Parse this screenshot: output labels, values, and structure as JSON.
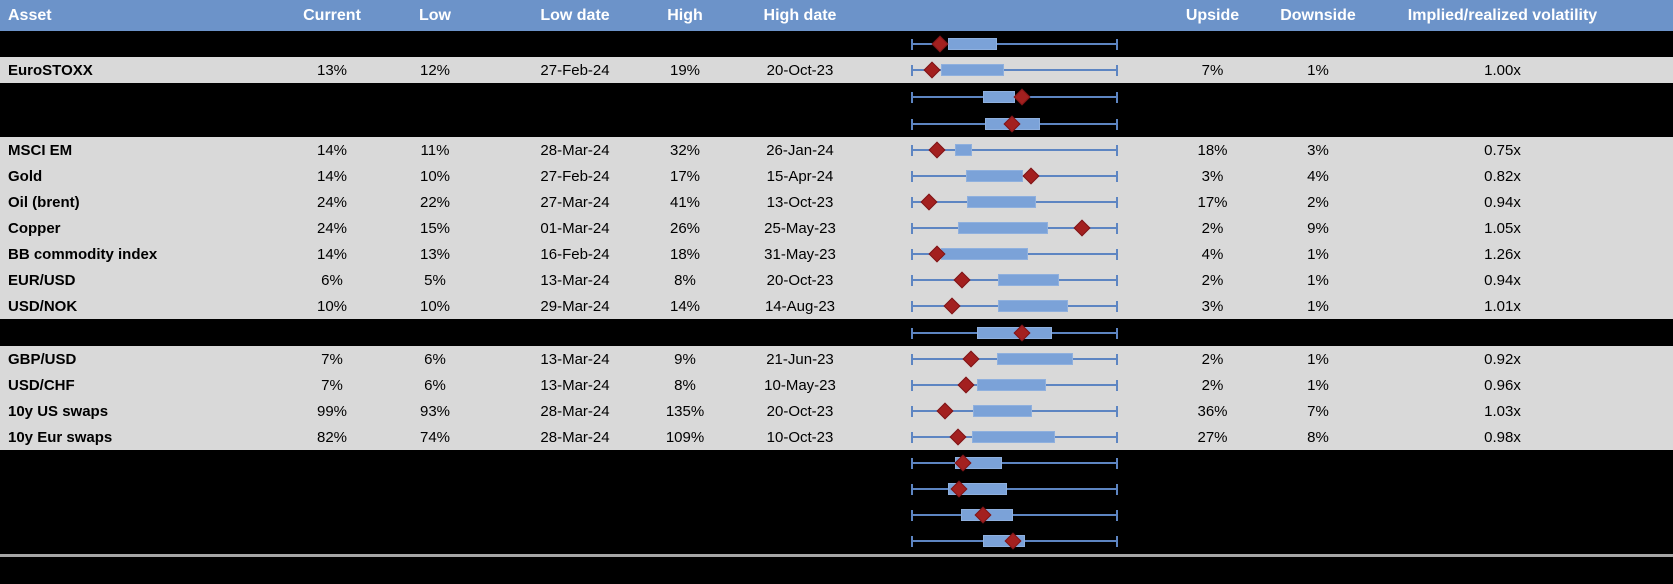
{
  "header": {
    "columns": [
      {
        "key": "asset",
        "label": "Asset"
      },
      {
        "key": "current",
        "label": "Current"
      },
      {
        "key": "low",
        "label": "Low"
      },
      {
        "key": "low_date",
        "label": "Low date"
      },
      {
        "key": "high",
        "label": "High"
      },
      {
        "key": "high_date",
        "label": "High date"
      },
      {
        "key": "plot",
        "label": ""
      },
      {
        "key": "upside",
        "label": "Upside"
      },
      {
        "key": "downside",
        "label": "Downside"
      },
      {
        "key": "implied",
        "label": "Implied/realized volatility"
      }
    ]
  },
  "colors": {
    "header_bg": "#6C93C9",
    "header_text": "#FFFFFF",
    "data_row_bg": "#D9D9D9",
    "spacer_bg": "#000000",
    "box_fill": "#7BA2D8",
    "whisker_line": "#5D85C2",
    "marker_fill": "#A3201F",
    "divider_line": "#A6A6A6",
    "text": "#000000"
  },
  "rows": [
    {
      "type": "spacer",
      "plot": {
        "box": [
          0.176,
          0.415
        ],
        "marker": 0.137
      }
    },
    {
      "type": "data",
      "asset": "EuroSTOXX",
      "current": "13%",
      "low": "12%",
      "low_date": "27-Feb-24",
      "high": "19%",
      "high_date": "20-Oct-23",
      "upside": "7%",
      "downside": "1%",
      "implied": "1.00x",
      "plot": {
        "box": [
          0.141,
          0.449
        ],
        "marker": 0.098
      }
    },
    {
      "type": "spacer",
      "plot": {
        "box": [
          0.346,
          0.502
        ],
        "marker": 0.537
      }
    },
    {
      "type": "spacer",
      "plot": {
        "box": [
          0.356,
          0.624
        ],
        "marker": 0.488
      }
    },
    {
      "type": "data",
      "asset": "MSCI EM",
      "current": "14%",
      "low": "11%",
      "low_date": "28-Mar-24",
      "high": "32%",
      "high_date": "26-Jan-24",
      "upside": "18%",
      "downside": "3%",
      "implied": "0.75x",
      "plot": {
        "box": [
          0.21,
          0.293
        ],
        "marker": 0.122
      }
    },
    {
      "type": "data",
      "asset": "Gold",
      "current": "14%",
      "low": "10%",
      "low_date": "27-Feb-24",
      "high": "17%",
      "high_date": "15-Apr-24",
      "upside": "3%",
      "downside": "4%",
      "implied": "0.82x",
      "plot": {
        "box": [
          0.263,
          0.541
        ],
        "marker": 0.58
      }
    },
    {
      "type": "data",
      "asset": "Oil (brent)",
      "current": "24%",
      "low": "22%",
      "low_date": "27-Mar-24",
      "high": "41%",
      "high_date": "13-Oct-23",
      "upside": "17%",
      "downside": "2%",
      "implied": "0.94x",
      "plot": {
        "box": [
          0.268,
          0.605
        ],
        "marker": 0.083
      }
    },
    {
      "type": "data",
      "asset": "Copper",
      "current": "24%",
      "low": "15%",
      "low_date": "01-Mar-24",
      "high": "26%",
      "high_date": "25-May-23",
      "upside": "2%",
      "downside": "9%",
      "implied": "1.05x",
      "plot": {
        "box": [
          0.224,
          0.663
        ],
        "marker": 0.829
      }
    },
    {
      "type": "data",
      "asset": "BB commodity index",
      "current": "14%",
      "low": "13%",
      "low_date": "16-Feb-24",
      "high": "18%",
      "high_date": "31-May-23",
      "upside": "4%",
      "downside": "1%",
      "implied": "1.26x",
      "plot": {
        "box": [
          0.141,
          0.566
        ],
        "marker": 0.122
      }
    },
    {
      "type": "data",
      "asset": "EUR/USD",
      "current": "6%",
      "low": "5%",
      "low_date": "13-Mar-24",
      "high": "8%",
      "high_date": "20-Oct-23",
      "upside": "2%",
      "downside": "1%",
      "implied": "0.94x",
      "plot": {
        "box": [
          0.42,
          0.717
        ],
        "marker": 0.244
      }
    },
    {
      "type": "data",
      "asset": "USD/NOK",
      "current": "10%",
      "low": "10%",
      "low_date": "29-Mar-24",
      "high": "14%",
      "high_date": "14-Aug-23",
      "upside": "3%",
      "downside": "1%",
      "implied": "1.01x",
      "plot": {
        "box": [
          0.42,
          0.761
        ],
        "marker": 0.195
      }
    },
    {
      "type": "spacer",
      "plot": {
        "box": [
          0.317,
          0.683
        ],
        "marker": 0.537
      }
    },
    {
      "type": "data",
      "asset": "GBP/USD",
      "current": "7%",
      "low": "6%",
      "low_date": "13-Mar-24",
      "high": "9%",
      "high_date": "21-Jun-23",
      "upside": "2%",
      "downside": "1%",
      "implied": "0.92x",
      "plot": {
        "box": [
          0.415,
          0.785
        ],
        "marker": 0.288
      }
    },
    {
      "type": "data",
      "asset": "USD/CHF",
      "current": "7%",
      "low": "6%",
      "low_date": "13-Mar-24",
      "high": "8%",
      "high_date": "10-May-23",
      "upside": "2%",
      "downside": "1%",
      "implied": "0.96x",
      "plot": {
        "box": [
          0.317,
          0.654
        ],
        "marker": 0.263
      }
    },
    {
      "type": "data",
      "asset": "10y US swaps",
      "current": "99%",
      "low": "93%",
      "low_date": "28-Mar-24",
      "high": "135%",
      "high_date": "20-Oct-23",
      "upside": "36%",
      "downside": "7%",
      "implied": "1.03x",
      "plot": {
        "box": [
          0.298,
          0.585
        ],
        "marker": 0.161
      }
    },
    {
      "type": "data",
      "asset": "10y Eur swaps",
      "current": "82%",
      "low": "74%",
      "low_date": "28-Mar-24",
      "high": "109%",
      "high_date": "10-Oct-23",
      "upside": "27%",
      "downside": "8%",
      "implied": "0.98x",
      "plot": {
        "box": [
          0.293,
          0.698
        ],
        "marker": 0.224
      }
    },
    {
      "type": "spacer",
      "plot": {
        "box": [
          0.21,
          0.439
        ],
        "marker": 0.249
      }
    },
    {
      "type": "spacer",
      "plot": {
        "box": [
          0.176,
          0.463
        ],
        "marker": 0.229
      }
    },
    {
      "type": "spacer",
      "plot": {
        "box": [
          0.239,
          0.493
        ],
        "marker": 0.346
      }
    },
    {
      "type": "spacer",
      "plot": {
        "box": [
          0.346,
          0.551
        ],
        "marker": 0.493
      }
    },
    {
      "type": "divider"
    },
    {
      "type": "footer"
    }
  ],
  "chart_data": {
    "type": "table",
    "title": "Implied volatility: current vs 1-year range with box-whisker distribution",
    "columns": [
      "Asset",
      "Current",
      "Low",
      "Low date",
      "High",
      "High date",
      "Upside",
      "Downside",
      "Implied/realized volatility"
    ],
    "rows": [
      [
        "EuroSTOXX",
        "13%",
        "12%",
        "27-Feb-24",
        "19%",
        "20-Oct-23",
        "7%",
        "1%",
        "1.00x"
      ],
      [
        "MSCI EM",
        "14%",
        "11%",
        "28-Mar-24",
        "32%",
        "26-Jan-24",
        "18%",
        "3%",
        "0.75x"
      ],
      [
        "Gold",
        "14%",
        "10%",
        "27-Feb-24",
        "17%",
        "15-Apr-24",
        "3%",
        "4%",
        "0.82x"
      ],
      [
        "Oil (brent)",
        "24%",
        "22%",
        "27-Mar-24",
        "41%",
        "13-Oct-23",
        "17%",
        "2%",
        "0.94x"
      ],
      [
        "Copper",
        "24%",
        "15%",
        "01-Mar-24",
        "26%",
        "25-May-23",
        "2%",
        "9%",
        "1.05x"
      ],
      [
        "BB commodity index",
        "14%",
        "13%",
        "16-Feb-24",
        "18%",
        "31-May-23",
        "4%",
        "1%",
        "1.26x"
      ],
      [
        "EUR/USD",
        "6%",
        "5%",
        "13-Mar-24",
        "8%",
        "20-Oct-23",
        "2%",
        "1%",
        "0.94x"
      ],
      [
        "USD/NOK",
        "10%",
        "10%",
        "29-Mar-24",
        "14%",
        "14-Aug-23",
        "3%",
        "1%",
        "1.01x"
      ],
      [
        "GBP/USD",
        "7%",
        "6%",
        "13-Mar-24",
        "9%",
        "21-Jun-23",
        "2%",
        "1%",
        "0.92x"
      ],
      [
        "USD/CHF",
        "7%",
        "6%",
        "13-Mar-24",
        "8%",
        "10-May-23",
        "2%",
        "1%",
        "0.96x"
      ],
      [
        "10y US swaps",
        "99%",
        "93%",
        "28-Mar-24",
        "135%",
        "20-Oct-23",
        "36%",
        "7%",
        "1.03x"
      ],
      [
        "10y Eur swaps",
        "82%",
        "74%",
        "28-Mar-24",
        "109%",
        "10-Oct-23",
        "27%",
        "8%",
        "0.98x"
      ]
    ],
    "boxplot_column": {
      "description": "Horizontal box-whisker per row; whisker spans full min-max range (normalized 0-1), blue box = interquartile band, red diamond = current level",
      "axis_range": [
        0,
        1
      ],
      "rows": [
        {
          "label": "",
          "box": [
            0.176,
            0.415
          ],
          "marker": 0.137
        },
        {
          "label": "EuroSTOXX",
          "box": [
            0.141,
            0.449
          ],
          "marker": 0.098
        },
        {
          "label": "",
          "box": [
            0.346,
            0.502
          ],
          "marker": 0.537
        },
        {
          "label": "",
          "box": [
            0.356,
            0.624
          ],
          "marker": 0.488
        },
        {
          "label": "MSCI EM",
          "box": [
            0.21,
            0.293
          ],
          "marker": 0.122
        },
        {
          "label": "Gold",
          "box": [
            0.263,
            0.541
          ],
          "marker": 0.58
        },
        {
          "label": "Oil (brent)",
          "box": [
            0.268,
            0.605
          ],
          "marker": 0.083
        },
        {
          "label": "Copper",
          "box": [
            0.224,
            0.663
          ],
          "marker": 0.829
        },
        {
          "label": "BB commodity index",
          "box": [
            0.141,
            0.566
          ],
          "marker": 0.122
        },
        {
          "label": "EUR/USD",
          "box": [
            0.42,
            0.717
          ],
          "marker": 0.244
        },
        {
          "label": "USD/NOK",
          "box": [
            0.42,
            0.761
          ],
          "marker": 0.195
        },
        {
          "label": "",
          "box": [
            0.317,
            0.683
          ],
          "marker": 0.537
        },
        {
          "label": "GBP/USD",
          "box": [
            0.415,
            0.785
          ],
          "marker": 0.288
        },
        {
          "label": "USD/CHF",
          "box": [
            0.317,
            0.654
          ],
          "marker": 0.263
        },
        {
          "label": "10y US swaps",
          "box": [
            0.298,
            0.585
          ],
          "marker": 0.161
        },
        {
          "label": "10y Eur swaps",
          "box": [
            0.293,
            0.698
          ],
          "marker": 0.224
        },
        {
          "label": "",
          "box": [
            0.21,
            0.439
          ],
          "marker": 0.249
        },
        {
          "label": "",
          "box": [
            0.176,
            0.463
          ],
          "marker": 0.229
        },
        {
          "label": "",
          "box": [
            0.239,
            0.493
          ],
          "marker": 0.346
        },
        {
          "label": "",
          "box": [
            0.346,
            0.551
          ],
          "marker": 0.493
        }
      ]
    }
  }
}
